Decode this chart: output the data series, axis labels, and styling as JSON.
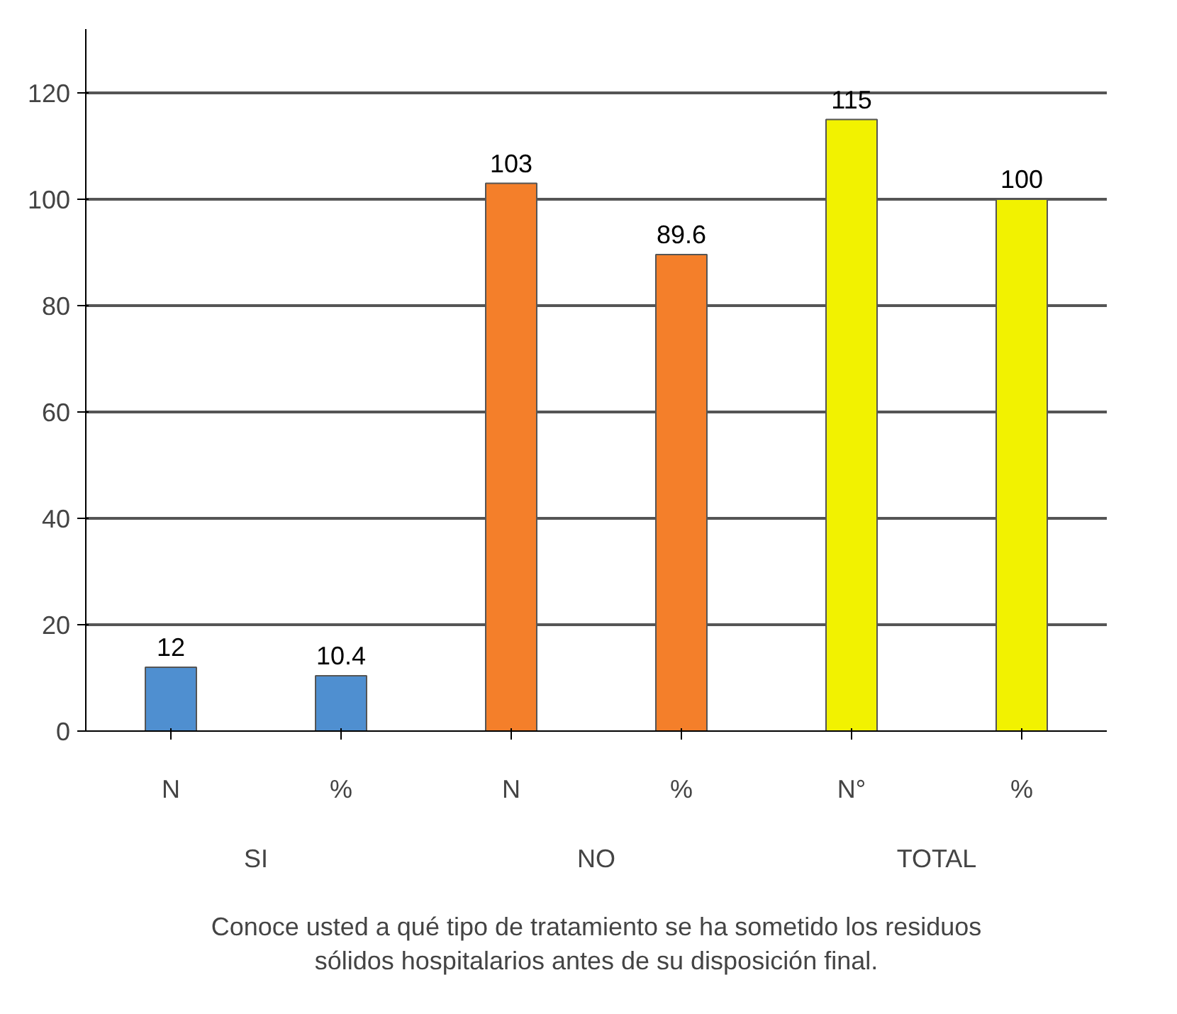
{
  "chart_data": {
    "type": "bar",
    "xlabel": "Conoce usted a qué tipo de tratamiento se ha sometido los residuos sólidos hospitalarios antes de su disposición final.",
    "categories": [
      "N",
      "%",
      "N",
      "%",
      "N°",
      "%"
    ],
    "values": [
      12,
      10.4,
      103,
      89.6,
      115,
      100
    ],
    "colors": [
      "#4f8fd0",
      "#4f8fd0",
      "#f47f2a",
      "#f47f2a",
      "#f2f200",
      "#f2f200"
    ],
    "annotations": [
      "SI",
      "NO",
      "TOTAL"
    ],
    "ylim": [
      0,
      132
    ],
    "yticks": [
      0,
      20,
      40,
      60,
      80,
      100,
      120
    ],
    "grid": "y",
    "data_labels": true
  }
}
